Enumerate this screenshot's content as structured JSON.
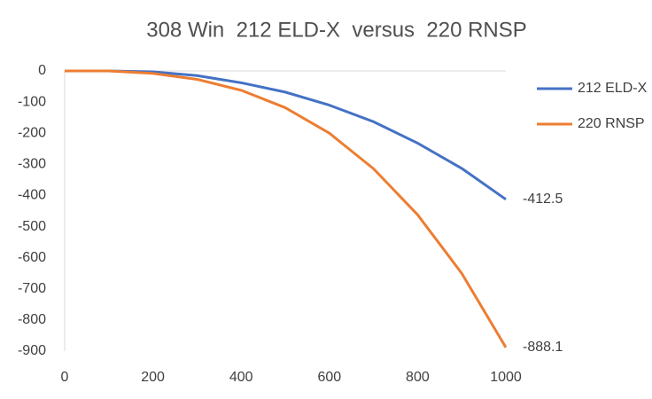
{
  "chart_data": {
    "type": "line",
    "title": "308 Win  212 ELD-X  versus  220 RNSP",
    "x": [
      0,
      100,
      200,
      300,
      400,
      500,
      600,
      700,
      800,
      900,
      1000
    ],
    "series": [
      {
        "name": "212 ELD-X",
        "color": "#4472c4",
        "values": [
          0,
          0,
          -3,
          -15,
          -38,
          -68,
          -110,
          -163,
          -232,
          -313,
          -412.5
        ]
      },
      {
        "name": "220 RNSP",
        "color": "#ed7d31",
        "values": [
          0,
          0,
          -8,
          -27,
          -62,
          -118,
          -200,
          -314,
          -462,
          -650,
          -888.1
        ]
      }
    ],
    "xlim": [
      0,
      1000
    ],
    "xticks": [
      0,
      200,
      400,
      600,
      800,
      1000
    ],
    "ylim": [
      -900,
      0
    ],
    "yticks": [
      0,
      -100,
      -200,
      -300,
      -400,
      -500,
      -600,
      -700,
      -800,
      -900
    ],
    "grid": false,
    "legend": "right"
  }
}
